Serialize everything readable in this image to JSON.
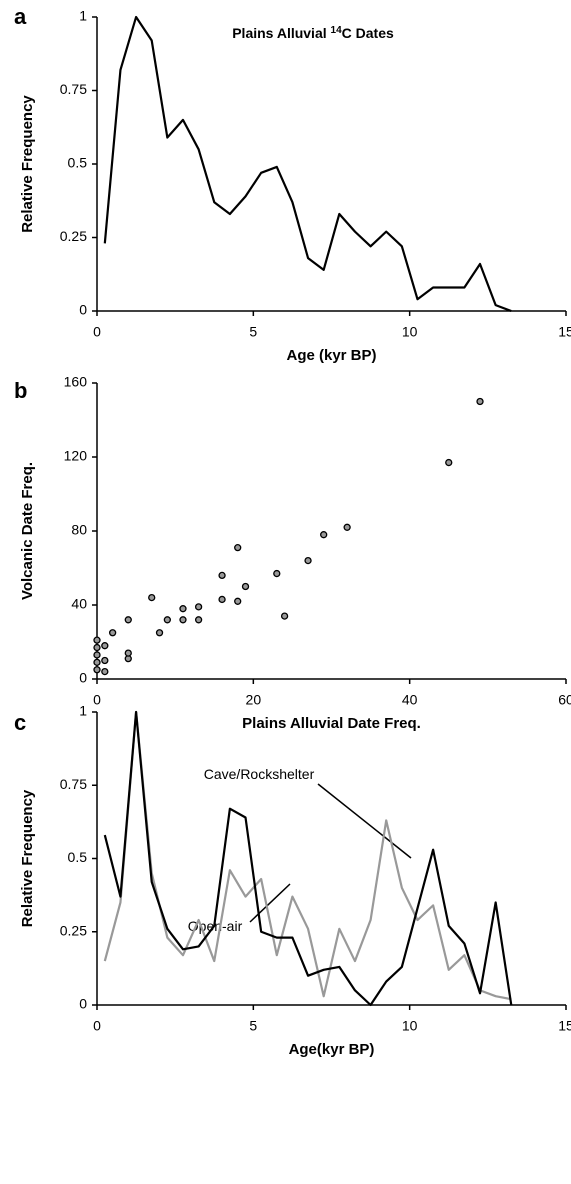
{
  "chart_data": [
    {
      "type": "line",
      "panel_label": "a",
      "title": [
        "Plains Alluvial ",
        "14",
        "C Dates"
      ],
      "x_label": "Age (kyr BP)",
      "y_label": "Relative Frequency",
      "x": [
        0.25,
        0.75,
        1.25,
        1.75,
        2.25,
        2.75,
        3.25,
        3.75,
        4.25,
        4.75,
        5.25,
        5.75,
        6.25,
        6.75,
        7.25,
        7.75,
        8.25,
        8.75,
        9.25,
        9.75,
        10.25,
        10.75,
        11.25,
        11.75,
        12.25,
        12.75,
        13.25
      ],
      "values": [
        0.23,
        0.82,
        1,
        0.92,
        0.59,
        0.65,
        0.55,
        0.37,
        0.33,
        0.39,
        0.47,
        0.49,
        0.37,
        0.18,
        0.14,
        0.33,
        0.27,
        0.22,
        0.27,
        0.22,
        0.04,
        0.08,
        0.08,
        0.08,
        0.16,
        0.02,
        0
      ],
      "color": "#000000",
      "xlim": [
        0,
        15
      ],
      "xticks": [
        0,
        5,
        10,
        15
      ],
      "ylim": [
        0,
        1
      ],
      "yticks": [
        0,
        0.25,
        0.5,
        0.75,
        1
      ]
    },
    {
      "type": "scatter",
      "panel_label": "b",
      "x_label": "Plains Alluvial Date Freq.",
      "y_label": "Volcanic Date Freq.",
      "x": [
        0,
        0,
        0,
        0,
        0,
        1,
        1,
        1,
        2,
        4,
        4,
        4,
        7,
        8,
        9,
        11,
        11,
        13,
        13,
        16,
        16,
        18,
        18,
        19,
        23,
        24,
        27,
        29,
        32,
        45,
        49
      ],
      "values": [
        5,
        9,
        13,
        17,
        21,
        4,
        10,
        18,
        25,
        11,
        14,
        32,
        44,
        25,
        32,
        32,
        38,
        32,
        39,
        43,
        56,
        42,
        71,
        50,
        57,
        34,
        64,
        78,
        82,
        117,
        150
      ],
      "color": "#999999",
      "xlim": [
        0,
        60
      ],
      "xticks": [
        0,
        20,
        40,
        60
      ],
      "ylim": [
        0,
        160
      ],
      "yticks": [
        0,
        40,
        80,
        120,
        160
      ]
    },
    {
      "type": "line",
      "panel_label": "c",
      "x_label": "Age(kyr BP)",
      "y_label": "Relative Frequency",
      "x": [
        0.25,
        0.75,
        1.25,
        1.75,
        2.25,
        2.75,
        3.25,
        3.75,
        4.25,
        4.75,
        5.25,
        5.75,
        6.25,
        6.75,
        7.25,
        7.75,
        8.25,
        8.75,
        9.25,
        9.75,
        10.25,
        10.75,
        11.25,
        11.75,
        12.25,
        12.75,
        13.25
      ],
      "series": [
        {
          "name": "Cave/Rockshelter",
          "color": "#999999",
          "values": [
            0.15,
            0.35,
            1,
            0.45,
            0.23,
            0.17,
            0.29,
            0.15,
            0.46,
            0.37,
            0.43,
            0.17,
            0.37,
            0.26,
            0.03,
            0.26,
            0.15,
            0.29,
            0.63,
            0.4,
            0.29,
            0.34,
            0.12,
            0.17,
            0.05,
            0.03,
            0.02
          ]
        },
        {
          "name": "Open-air",
          "color": "#000000",
          "values": [
            0.58,
            0.37,
            1,
            0.42,
            0.26,
            0.19,
            0.2,
            0.27,
            0.67,
            0.64,
            0.25,
            0.23,
            0.23,
            0.1,
            0.12,
            0.13,
            0.05,
            0,
            0.08,
            0.13,
            0.33,
            0.53,
            0.27,
            0.21,
            0.04,
            0.35,
            0
          ]
        }
      ],
      "xlim": [
        0,
        15
      ],
      "xticks": [
        0,
        5,
        10,
        15
      ],
      "ylim": [
        0,
        1
      ],
      "yticks": [
        0,
        0.25,
        0.5,
        0.75,
        1
      ]
    }
  ]
}
